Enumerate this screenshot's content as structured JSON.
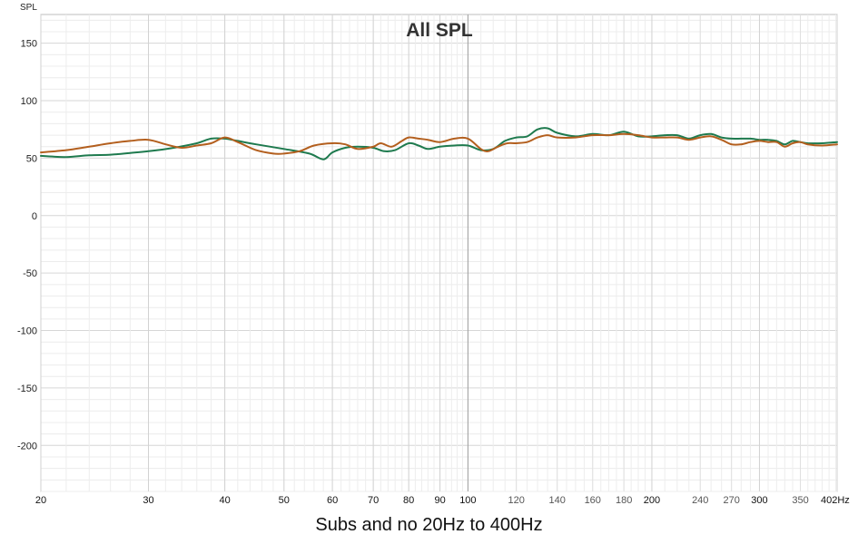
{
  "caption": "Subs and no 20Hz to 400Hz",
  "chart_data": {
    "type": "line",
    "title": "All SPL",
    "ylabel": "SPL",
    "xlabel": "",
    "x_scale": "log",
    "xlim": [
      20,
      402
    ],
    "ylim": [
      -240,
      175
    ],
    "grid": true,
    "x_tick_labels": [
      {
        "value": 20,
        "label": "20",
        "major": true
      },
      {
        "value": 30,
        "label": "30",
        "major": true
      },
      {
        "value": 40,
        "label": "40",
        "major": true
      },
      {
        "value": 50,
        "label": "50",
        "major": true
      },
      {
        "value": 60,
        "label": "60",
        "major": true
      },
      {
        "value": 70,
        "label": "70",
        "major": true
      },
      {
        "value": 80,
        "label": "80",
        "major": true
      },
      {
        "value": 90,
        "label": "90",
        "major": true
      },
      {
        "value": 100,
        "label": "100",
        "major": true
      },
      {
        "value": 120,
        "label": "120",
        "major": false
      },
      {
        "value": 140,
        "label": "140",
        "major": false
      },
      {
        "value": 160,
        "label": "160",
        "major": false
      },
      {
        "value": 180,
        "label": "180",
        "major": false
      },
      {
        "value": 200,
        "label": "200",
        "major": true
      },
      {
        "value": 240,
        "label": "240",
        "major": false
      },
      {
        "value": 270,
        "label": "270",
        "major": false
      },
      {
        "value": 300,
        "label": "300",
        "major": true
      },
      {
        "value": 350,
        "label": "350",
        "major": false
      },
      {
        "value": 402,
        "label": "402Hz",
        "major": true
      }
    ],
    "y_ticks": [
      150,
      100,
      50,
      0,
      -50,
      -100,
      -150,
      -200
    ],
    "series": [
      {
        "color": "#1e7a4e",
        "points": [
          [
            20,
            52
          ],
          [
            22,
            51
          ],
          [
            24,
            52.5
          ],
          [
            26,
            53
          ],
          [
            28,
            54.5
          ],
          [
            30,
            56
          ],
          [
            33,
            59
          ],
          [
            36,
            63
          ],
          [
            38,
            67
          ],
          [
            40,
            67
          ],
          [
            42,
            65
          ],
          [
            45,
            62
          ],
          [
            50,
            58
          ],
          [
            55,
            54
          ],
          [
            58,
            49
          ],
          [
            60,
            55
          ],
          [
            63,
            59
          ],
          [
            66,
            60
          ],
          [
            70,
            59
          ],
          [
            73,
            56
          ],
          [
            76,
            57
          ],
          [
            80,
            63
          ],
          [
            83,
            61
          ],
          [
            86,
            58
          ],
          [
            90,
            60
          ],
          [
            95,
            61
          ],
          [
            100,
            61
          ],
          [
            105,
            57
          ],
          [
            110,
            58
          ],
          [
            115,
            65
          ],
          [
            120,
            68
          ],
          [
            125,
            69
          ],
          [
            130,
            75
          ],
          [
            135,
            76
          ],
          [
            140,
            72
          ],
          [
            150,
            69
          ],
          [
            160,
            71
          ],
          [
            170,
            70
          ],
          [
            180,
            73
          ],
          [
            190,
            69
          ],
          [
            200,
            69
          ],
          [
            210,
            70
          ],
          [
            220,
            70
          ],
          [
            230,
            67
          ],
          [
            240,
            70
          ],
          [
            250,
            71
          ],
          [
            260,
            68
          ],
          [
            270,
            67
          ],
          [
            280,
            67
          ],
          [
            290,
            67
          ],
          [
            300,
            66
          ],
          [
            310,
            66
          ],
          [
            320,
            65
          ],
          [
            330,
            62
          ],
          [
            340,
            65
          ],
          [
            350,
            64
          ],
          [
            360,
            63
          ],
          [
            380,
            63
          ],
          [
            402,
            64
          ]
        ]
      },
      {
        "color": "#b35f1e",
        "points": [
          [
            20,
            55
          ],
          [
            22,
            57
          ],
          [
            24,
            60
          ],
          [
            26,
            63
          ],
          [
            28,
            65
          ],
          [
            30,
            66
          ],
          [
            32,
            62
          ],
          [
            34,
            59
          ],
          [
            36,
            61
          ],
          [
            38,
            63
          ],
          [
            40,
            68
          ],
          [
            42,
            64
          ],
          [
            45,
            57
          ],
          [
            48,
            54
          ],
          [
            50,
            54
          ],
          [
            53,
            56
          ],
          [
            56,
            61
          ],
          [
            60,
            63
          ],
          [
            63,
            62
          ],
          [
            66,
            58
          ],
          [
            70,
            60
          ],
          [
            72,
            63
          ],
          [
            75,
            60
          ],
          [
            78,
            65
          ],
          [
            80,
            68
          ],
          [
            83,
            67
          ],
          [
            86,
            66
          ],
          [
            90,
            64
          ],
          [
            95,
            67
          ],
          [
            100,
            67
          ],
          [
            105,
            58
          ],
          [
            108,
            56
          ],
          [
            112,
            60
          ],
          [
            116,
            63
          ],
          [
            120,
            63
          ],
          [
            125,
            64
          ],
          [
            130,
            68
          ],
          [
            135,
            70
          ],
          [
            140,
            68
          ],
          [
            150,
            68
          ],
          [
            160,
            70
          ],
          [
            170,
            70
          ],
          [
            180,
            71
          ],
          [
            190,
            70
          ],
          [
            200,
            68
          ],
          [
            210,
            68
          ],
          [
            220,
            68
          ],
          [
            230,
            66
          ],
          [
            240,
            68
          ],
          [
            250,
            69
          ],
          [
            260,
            66
          ],
          [
            270,
            62
          ],
          [
            280,
            62
          ],
          [
            290,
            64
          ],
          [
            300,
            65
          ],
          [
            310,
            64
          ],
          [
            320,
            64
          ],
          [
            330,
            60
          ],
          [
            340,
            63
          ],
          [
            350,
            64
          ],
          [
            360,
            62
          ],
          [
            380,
            61
          ],
          [
            402,
            62
          ]
        ]
      }
    ]
  }
}
